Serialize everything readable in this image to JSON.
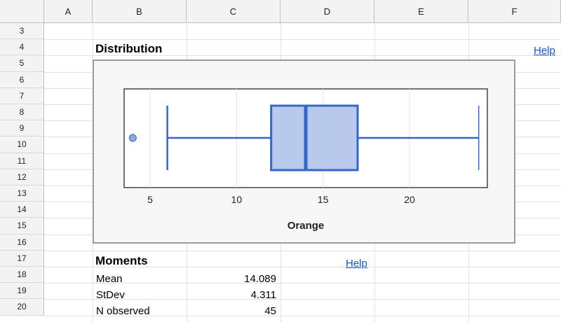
{
  "columns": [
    "A",
    "B",
    "C",
    "D",
    "E",
    "F"
  ],
  "rows": [
    "3",
    "4",
    "5",
    "6",
    "7",
    "8",
    "9",
    "10",
    "11",
    "12",
    "13",
    "14",
    "15",
    "16",
    "17",
    "18",
    "19",
    "20"
  ],
  "distribution": {
    "title": "Distribution",
    "help_label": "Help"
  },
  "moments": {
    "title": "Moments",
    "help_label": "Help",
    "rows": [
      {
        "label": "Mean",
        "value": "14.089"
      },
      {
        "label": "StDev",
        "value": "4.311"
      },
      {
        "label": "N observed",
        "value": "45"
      }
    ]
  },
  "chart_data": {
    "type": "boxplot",
    "xlabel": "Orange",
    "xlim": [
      3.5,
      24.5
    ],
    "xticks": [
      5,
      10,
      15,
      20
    ],
    "box": {
      "whisker_low": 6,
      "q1": 12,
      "median": 14,
      "q3": 17,
      "whisker_high": 24
    },
    "outliers": [
      4
    ],
    "colors": {
      "stroke": "#3366cc",
      "fill": "#b9c9ec",
      "outlier": "#8fa9e0"
    }
  }
}
